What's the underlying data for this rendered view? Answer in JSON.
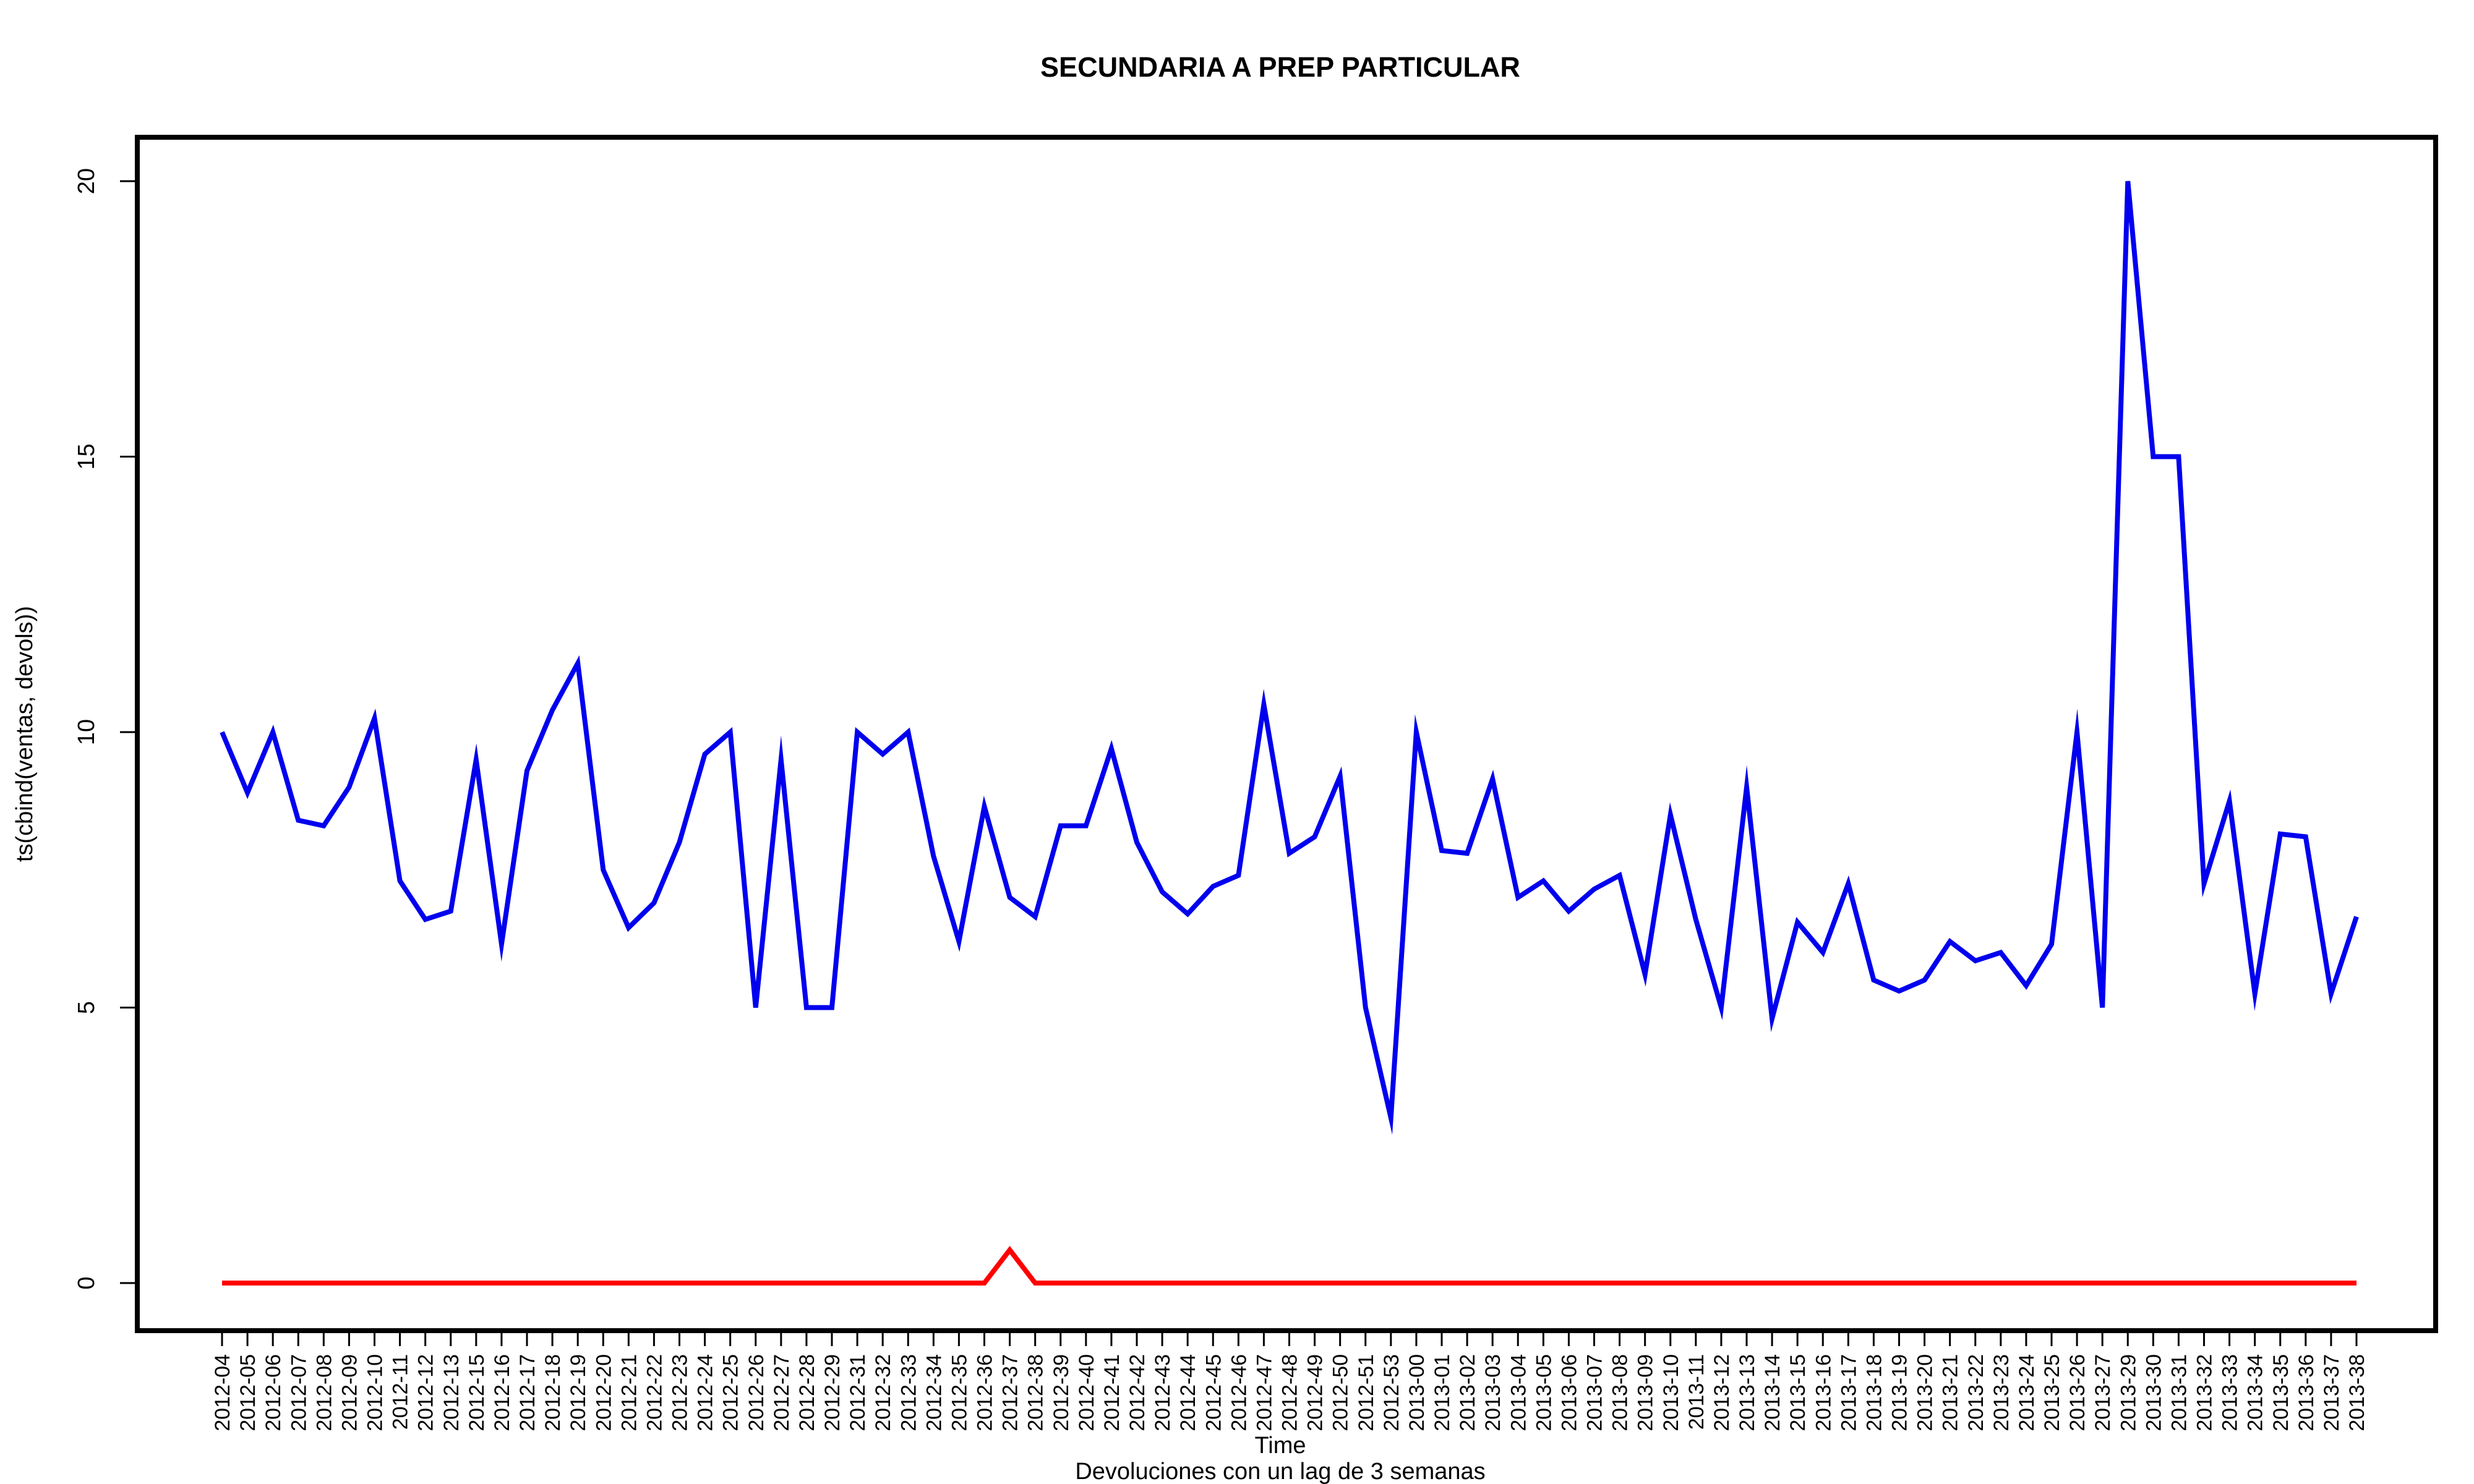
{
  "chart_data": {
    "type": "line",
    "title": "SECUNDARIA A PREP PARTICULAR",
    "xlabel": "Time",
    "ylabel": "ts(cbind(ventas, devols))",
    "subtitle": "Devoluciones con un lag de 3 semanas",
    "ylim": [
      0,
      20
    ],
    "yticks": [
      0,
      5,
      10,
      15,
      20
    ],
    "grid": false,
    "categories": [
      "2012-04",
      "2012-05",
      "2012-06",
      "2012-07",
      "2012-08",
      "2012-09",
      "2012-10",
      "2012-11",
      "2012-12",
      "2012-13",
      "2012-15",
      "2012-16",
      "2012-17",
      "2012-18",
      "2012-19",
      "2012-20",
      "2012-21",
      "2012-22",
      "2012-23",
      "2012-24",
      "2012-25",
      "2012-26",
      "2012-27",
      "2012-28",
      "2012-29",
      "2012-31",
      "2012-32",
      "2012-33",
      "2012-34",
      "2012-35",
      "2012-36",
      "2012-37",
      "2012-38",
      "2012-39",
      "2012-40",
      "2012-41",
      "2012-42",
      "2012-43",
      "2012-44",
      "2012-45",
      "2012-46",
      "2012-47",
      "2012-48",
      "2012-49",
      "2012-50",
      "2012-51",
      "2012-53",
      "2013-00",
      "2013-01",
      "2013-02",
      "2013-03",
      "2013-04",
      "2013-05",
      "2013-06",
      "2013-07",
      "2013-08",
      "2013-09",
      "2013-10",
      "2013-11",
      "2013-12",
      "2013-13",
      "2013-14",
      "2013-15",
      "2013-16",
      "2013-17",
      "2013-18",
      "2013-19",
      "2013-20",
      "2013-21",
      "2013-22",
      "2013-23",
      "2013-24",
      "2013-25",
      "2013-26",
      "2013-27",
      "2013-29",
      "2013-30",
      "2013-31",
      "2013-32",
      "2013-33",
      "2013-34",
      "2013-35",
      "2013-36",
      "2013-37",
      "2013-38"
    ],
    "series": [
      {
        "color": "#0000ee",
        "values": [
          10,
          8.9,
          10,
          8.4,
          8.3,
          9,
          10.25,
          7.3,
          6.6,
          6.75,
          9.5,
          6.15,
          9.3,
          10.4,
          11.25,
          7.5,
          6.45,
          6.9,
          8,
          9.6,
          10,
          5,
          9.5,
          5,
          5,
          10,
          9.6,
          10,
          7.75,
          6.2,
          8.65,
          7,
          6.65,
          8.3,
          8.3,
          9.7,
          8,
          7.1,
          6.7,
          7.2,
          7.4,
          10.5,
          7.8,
          8.1,
          9.2,
          5,
          3,
          10,
          7.85,
          7.8,
          9.15,
          7,
          7.3,
          6.75,
          7.15,
          7.4,
          5.6,
          8.5,
          6.6,
          5,
          9,
          4.8,
          6.55,
          6,
          7.25,
          5.5,
          5.3,
          5.5,
          6.2,
          5.85,
          6,
          5.4,
          6.15,
          10,
          5,
          20,
          15,
          15,
          7.25,
          8.75,
          5.25,
          8.15,
          8.1,
          5.25,
          6.65
        ]
      },
      {
        "color": "#ff0000",
        "values": [
          0,
          0,
          0,
          0,
          0,
          0,
          0,
          0,
          0,
          0,
          0,
          0,
          0,
          0,
          0,
          0,
          0,
          0,
          0,
          0,
          0,
          0,
          0,
          0,
          0,
          0,
          0,
          0,
          0,
          0,
          0,
          0.6,
          0,
          0,
          0,
          0,
          0,
          0,
          0,
          0,
          0,
          0,
          0,
          0,
          0,
          0,
          0,
          0,
          0,
          0,
          0,
          0,
          0,
          0,
          0,
          0,
          0,
          0,
          0,
          0,
          0,
          0,
          0,
          0,
          0,
          0,
          0,
          0,
          0,
          0,
          0,
          0,
          0,
          0,
          0,
          0,
          0,
          0,
          0,
          0,
          0,
          0,
          0,
          0,
          0
        ]
      }
    ]
  }
}
